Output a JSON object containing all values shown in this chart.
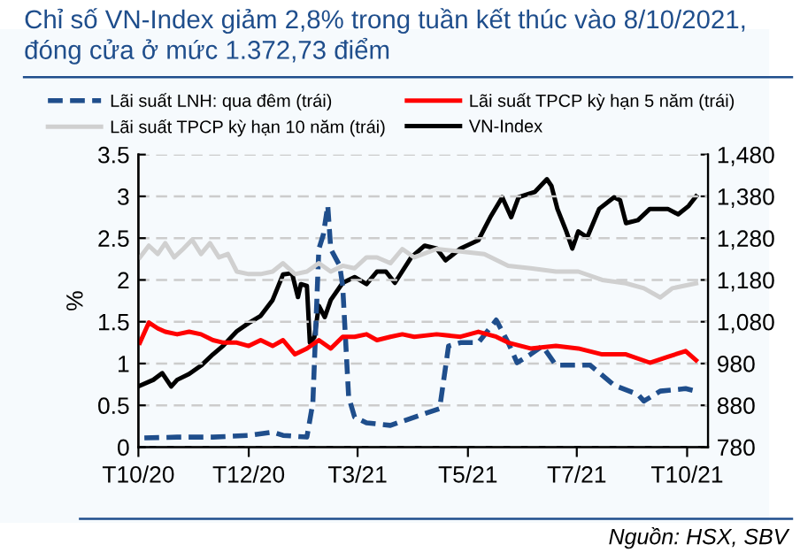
{
  "chart_data": {
    "type": "line",
    "title": "Chỉ số VN-Index giảm 2,8% trong tuần kết thúc vào 8/10/2021, đóng cửa ở mức 1.372,73 điểm",
    "ylabel": "%",
    "annotations": [
      "Nguồn: HSX, SBV"
    ],
    "xlim": [
      "2020-09-30",
      "2021-10-17"
    ],
    "xticks": [
      {
        "value": "2020-09-30",
        "label": "T10/20"
      },
      {
        "value": "2020-12-13",
        "label": "T12/20"
      },
      {
        "value": "2021-02-24",
        "label": "T3/21"
      },
      {
        "value": "2021-05-09",
        "label": "T5/21"
      },
      {
        "value": "2021-07-21",
        "label": "T7/21"
      },
      {
        "value": "2021-10-03",
        "label": "T10/21"
      }
    ],
    "ylim": [
      0,
      3.5
    ],
    "yticks": [
      0,
      0.5,
      1,
      1.5,
      2,
      2.5,
      3,
      3.5
    ],
    "y2lim": [
      780,
      1480
    ],
    "y2ticks": [
      {
        "value": 780,
        "label": "780"
      },
      {
        "value": 880,
        "label": "880"
      },
      {
        "value": 980,
        "label": "980"
      },
      {
        "value": 1080,
        "label": "1,080"
      },
      {
        "value": 1180,
        "label": "1,180"
      },
      {
        "value": 1280,
        "label": "1,280"
      },
      {
        "value": 1380,
        "label": "1,380"
      },
      {
        "value": 1480,
        "label": "1,480"
      }
    ],
    "grid": "y",
    "legend": "top",
    "marker": "none",
    "series": [
      {
        "name": "Lãi suất LNH: qua đêm (trái)",
        "color": "#1f4e8c",
        "line_style": "dashed",
        "x": [
          "2020-10-04",
          "2020-10-26",
          "2020-11-19",
          "2020-12-13",
          "2020-12-29",
          "2021-01-05",
          "2021-01-21",
          "2021-01-25",
          "2021-01-29",
          "2021-02-01",
          "2021-02-04",
          "2021-02-06",
          "2021-02-12",
          "2021-02-14",
          "2021-02-18",
          "2021-02-22",
          "2021-03-02",
          "2021-03-18",
          "2021-04-10",
          "2021-04-20",
          "2021-04-26",
          "2021-05-04",
          "2021-05-16",
          "2021-05-28",
          "2021-06-05",
          "2021-06-11",
          "2021-06-20",
          "2021-06-28",
          "2021-07-07",
          "2021-07-22",
          "2021-07-30",
          "2021-08-15",
          "2021-08-31",
          "2021-09-04",
          "2021-09-15",
          "2021-10-02",
          "2021-10-09"
        ],
        "values": [
          0.11,
          0.12,
          0.12,
          0.14,
          0.18,
          0.14,
          0.12,
          0.53,
          2.37,
          2.54,
          2.89,
          2.37,
          2.17,
          1.93,
          0.6,
          0.36,
          0.29,
          0.26,
          0.4,
          0.46,
          1.21,
          1.25,
          1.25,
          1.52,
          1.25,
          1.01,
          1.11,
          1.21,
          0.98,
          0.98,
          0.98,
          0.74,
          0.63,
          0.55,
          0.67,
          0.7,
          0.67
        ]
      },
      {
        "name": "Lãi suất TPCP kỳ hạn 5 năm (trái)",
        "color": "#ff0000",
        "line_style": "solid",
        "x": [
          "2020-10-01",
          "2020-10-07",
          "2020-10-13",
          "2020-10-18",
          "2020-10-26",
          "2020-11-03",
          "2020-11-11",
          "2020-11-19",
          "2020-11-26",
          "2020-12-05",
          "2020-12-13",
          "2020-12-21",
          "2020-12-29",
          "2021-01-05",
          "2021-01-13",
          "2021-01-21",
          "2021-01-29",
          "2021-02-06",
          "2021-02-14",
          "2021-02-22",
          "2021-03-02",
          "2021-03-09",
          "2021-03-18",
          "2021-03-26",
          "2021-04-03",
          "2021-04-18",
          "2021-05-04",
          "2021-05-16",
          "2021-05-28",
          "2021-06-05",
          "2021-06-20",
          "2021-07-07",
          "2021-07-22",
          "2021-08-07",
          "2021-08-23",
          "2021-09-08",
          "2021-09-20",
          "2021-10-02",
          "2021-10-09"
        ],
        "values": [
          1.25,
          1.49,
          1.42,
          1.38,
          1.35,
          1.38,
          1.35,
          1.28,
          1.25,
          1.25,
          1.21,
          1.28,
          1.21,
          1.28,
          1.11,
          1.18,
          1.28,
          1.18,
          1.32,
          1.32,
          1.35,
          1.28,
          1.32,
          1.35,
          1.32,
          1.35,
          1.32,
          1.38,
          1.32,
          1.25,
          1.18,
          1.21,
          1.18,
          1.11,
          1.11,
          1.01,
          1.08,
          1.15,
          1.04
        ]
      },
      {
        "name": "Lãi suất TPCP kỳ hạn 10 năm (trái)",
        "color": "#d0d0d0",
        "line_style": "solid",
        "x": [
          "2020-10-01",
          "2020-10-07",
          "2020-10-13",
          "2020-10-18",
          "2020-10-24",
          "2020-10-30",
          "2020-11-05",
          "2020-11-11",
          "2020-11-17",
          "2020-11-23",
          "2020-11-29",
          "2020-12-05",
          "2020-12-13",
          "2020-12-21",
          "2020-12-29",
          "2021-01-05",
          "2021-01-13",
          "2021-01-21",
          "2021-01-29",
          "2021-02-06",
          "2021-02-14",
          "2021-02-22",
          "2021-03-02",
          "2021-03-09",
          "2021-03-18",
          "2021-03-26",
          "2021-04-03",
          "2021-04-18",
          "2021-05-04",
          "2021-05-20",
          "2021-06-05",
          "2021-06-20",
          "2021-07-07",
          "2021-07-22",
          "2021-08-07",
          "2021-08-23",
          "2021-09-04",
          "2021-09-15",
          "2021-09-23",
          "2021-10-09"
        ],
        "values": [
          2.27,
          2.41,
          2.31,
          2.44,
          2.27,
          2.37,
          2.48,
          2.31,
          2.44,
          2.27,
          2.31,
          2.1,
          2.07,
          2.07,
          2.1,
          2.2,
          2.07,
          2.1,
          2.2,
          2.1,
          2.17,
          2.14,
          2.27,
          2.27,
          2.2,
          2.37,
          2.27,
          2.37,
          2.34,
          2.31,
          2.17,
          2.14,
          2.1,
          2.1,
          2.0,
          1.96,
          1.9,
          1.79,
          1.9,
          1.96
        ]
      },
      {
        "name": "VN-Index",
        "color": "#000000",
        "line_style": "solid",
        "axis": "y2",
        "x": [
          "2020-10-01",
          "2020-10-10",
          "2020-10-16",
          "2020-10-22",
          "2020-10-26",
          "2020-11-03",
          "2020-11-11",
          "2020-11-19",
          "2020-11-26",
          "2020-12-05",
          "2020-12-13",
          "2020-12-21",
          "2020-12-29",
          "2021-01-05",
          "2021-01-11",
          "2021-01-15",
          "2021-01-17",
          "2021-01-21",
          "2021-01-23",
          "2021-01-26",
          "2021-01-29",
          "2021-02-02",
          "2021-02-06",
          "2021-02-14",
          "2021-02-22",
          "2021-03-02",
          "2021-03-09",
          "2021-03-15",
          "2021-03-21",
          "2021-04-01",
          "2021-04-10",
          "2021-04-18",
          "2021-04-24",
          "2021-05-04",
          "2021-05-16",
          "2021-05-24",
          "2021-06-01",
          "2021-06-07",
          "2021-06-12",
          "2021-06-23",
          "2021-07-01",
          "2021-07-04",
          "2021-07-08",
          "2021-07-14",
          "2021-07-18",
          "2021-07-22",
          "2021-07-28",
          "2021-08-05",
          "2021-08-15",
          "2021-08-19",
          "2021-08-23",
          "2021-08-31",
          "2021-09-08",
          "2021-09-20",
          "2021-09-27",
          "2021-10-04",
          "2021-10-09"
        ],
        "values": [
          927,
          941,
          957,
          925,
          941,
          955,
          975,
          1002,
          1023,
          1057,
          1077,
          1094,
          1132,
          1193,
          1196,
          1139,
          1170,
          1166,
          1030,
          1043,
          1118,
          1091,
          1132,
          1173,
          1187,
          1170,
          1200,
          1200,
          1173,
          1234,
          1262,
          1255,
          1227,
          1255,
          1275,
          1330,
          1378,
          1330,
          1378,
          1391,
          1421,
          1405,
          1350,
          1296,
          1255,
          1296,
          1282,
          1350,
          1378,
          1371,
          1316,
          1323,
          1350,
          1350,
          1337,
          1357,
          1380
        ]
      }
    ]
  }
}
